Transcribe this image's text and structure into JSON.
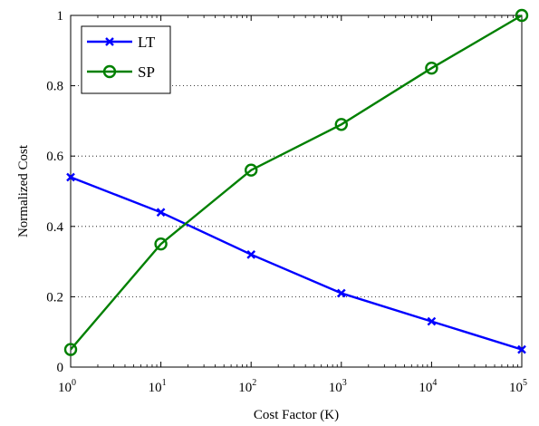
{
  "chart_data": {
    "type": "line",
    "xlabel": "Cost Factor (K)",
    "ylabel": "Normalized Cost",
    "x_scale": "log",
    "x": [
      1,
      10,
      100,
      1000,
      10000,
      100000
    ],
    "xlim": [
      1,
      100000
    ],
    "ylim": [
      0,
      1
    ],
    "x_ticks": [
      {
        "base": "10",
        "exp": "0"
      },
      {
        "base": "10",
        "exp": "1"
      },
      {
        "base": "10",
        "exp": "2"
      },
      {
        "base": "10",
        "exp": "3"
      },
      {
        "base": "10",
        "exp": "4"
      },
      {
        "base": "10",
        "exp": "5"
      }
    ],
    "y_ticks": [
      0,
      0.2,
      0.4,
      0.6,
      0.8,
      1
    ],
    "y_tick_labels": [
      "0",
      "0.2",
      "0.4",
      "0.6",
      "0.8",
      "1"
    ],
    "grid": "dotted horizontal",
    "legend_position": "top-left",
    "series": [
      {
        "name": "LT",
        "color": "#0000ff",
        "marker": "x",
        "values": [
          0.54,
          0.44,
          0.32,
          0.21,
          0.13,
          0.05
        ]
      },
      {
        "name": "SP",
        "color": "#008000",
        "marker": "circle",
        "values": [
          0.05,
          0.35,
          0.56,
          0.69,
          0.85,
          1.0
        ]
      }
    ]
  }
}
